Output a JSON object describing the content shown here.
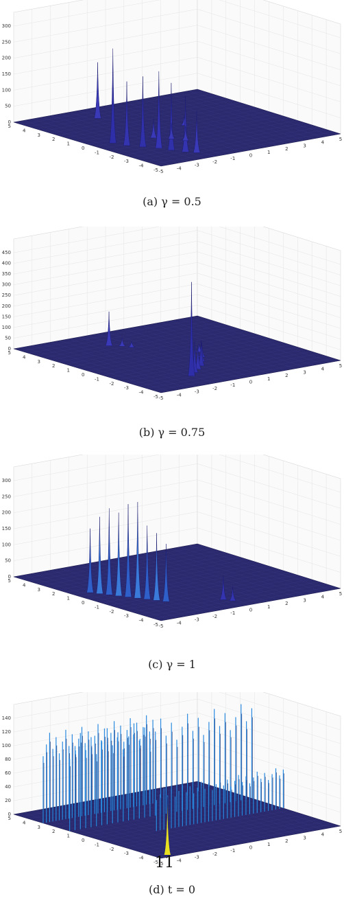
{
  "page_number": "11",
  "chart_data": [
    {
      "type": "surface",
      "caption": "(a) γ = 0.5",
      "zticks": [
        "0",
        "50",
        "100",
        "150",
        "200",
        "250",
        "300"
      ],
      "zmax": 300,
      "xticks": [
        "-5",
        "-4",
        "-3",
        "-2",
        "-1",
        "0",
        "1",
        "2",
        "3",
        "4",
        "5"
      ],
      "yticks": [
        "5",
        "4",
        "3",
        "2",
        "1",
        "0",
        "-1",
        "-2",
        "-3",
        "-4",
        "-5"
      ],
      "peaks": [
        {
          "u": 0.16,
          "v": 0.33,
          "z": 175,
          "c": "#3a3ab8"
        },
        {
          "u": 0.48,
          "v": 0.55,
          "z": 30,
          "c": "#3a3ab8"
        },
        {
          "u": 0.55,
          "v": 0.1,
          "z": 295,
          "c": "#2e2ea8"
        },
        {
          "u": 0.62,
          "v": 0.12,
          "z": 200,
          "c": "#3434b0"
        },
        {
          "u": 0.68,
          "v": 0.16,
          "z": 220,
          "c": "#3030aa"
        },
        {
          "u": 0.74,
          "v": 0.2,
          "z": 240,
          "c": "#3434b4"
        },
        {
          "u": 0.8,
          "v": 0.22,
          "z": 210,
          "c": "#3030aa"
        },
        {
          "u": 0.86,
          "v": 0.25,
          "z": 175,
          "c": "#3434b0"
        },
        {
          "u": 0.9,
          "v": 0.28,
          "z": 130,
          "c": "#3a3ab8"
        },
        {
          "u": 0.58,
          "v": 0.3,
          "z": 60,
          "c": "#3a3ab8"
        },
        {
          "u": 0.64,
          "v": 0.35,
          "z": 50,
          "c": "#3a3ab8"
        },
        {
          "u": 0.7,
          "v": 0.38,
          "z": 45,
          "c": "#3a3ab8"
        }
      ]
    },
    {
      "type": "surface",
      "caption": "(b) γ = 0.75",
      "zticks": [
        "0",
        "50",
        "100",
        "150",
        "200",
        "250",
        "300",
        "350",
        "400",
        "450"
      ],
      "zmax": 450,
      "xticks": [
        "-5",
        "-4",
        "-3",
        "-2",
        "-1",
        "0",
        "1",
        "2",
        "3",
        "4",
        "5"
      ],
      "yticks": [
        "5",
        "4",
        "3",
        "2",
        "1",
        "0",
        "-1",
        "-2",
        "-3",
        "-4",
        "-5"
      ],
      "peaks": [
        {
          "u": 0.2,
          "v": 0.36,
          "z": 160,
          "c": "#3a3ab8"
        },
        {
          "u": 0.24,
          "v": 0.4,
          "z": 40,
          "c": "#3a3ab8"
        },
        {
          "u": 0.28,
          "v": 0.42,
          "z": 30,
          "c": "#3a3ab8"
        },
        {
          "u": 0.52,
          "v": 0.6,
          "z": 40,
          "c": "#3a3ab8"
        },
        {
          "u": 0.6,
          "v": 0.55,
          "z": 70,
          "c": "#3434b0"
        },
        {
          "u": 0.66,
          "v": 0.5,
          "z": 90,
          "c": "#3434b0"
        },
        {
          "u": 0.72,
          "v": 0.45,
          "z": 120,
          "c": "#3030aa"
        },
        {
          "u": 0.76,
          "v": 0.4,
          "z": 110,
          "c": "#3434b0"
        },
        {
          "u": 0.8,
          "v": 0.35,
          "z": 150,
          "c": "#3030aa"
        },
        {
          "u": 0.84,
          "v": 0.3,
          "z": 440,
          "c": "#2e2ea8"
        }
      ]
    },
    {
      "type": "surface",
      "caption": "(c) γ = 1",
      "zticks": [
        "0",
        "50",
        "100",
        "150",
        "200",
        "250",
        "300"
      ],
      "zmax": 300,
      "xticks": [
        "-5",
        "-4",
        "-3",
        "-2",
        "-1",
        "0",
        "1",
        "2",
        "3",
        "4",
        "5"
      ],
      "yticks": [
        "5",
        "4",
        "3",
        "2",
        "1",
        "0",
        "-1",
        "-2",
        "-3",
        "-4",
        "-5"
      ],
      "peaks": [
        {
          "u": 0.42,
          "v": 0.08,
          "z": 200,
          "c": "#2f5fc8"
        },
        {
          "u": 0.46,
          "v": 0.1,
          "z": 240,
          "c": "#3a7ad8"
        },
        {
          "u": 0.5,
          "v": 0.12,
          "z": 270,
          "c": "#2f5fc8"
        },
        {
          "u": 0.54,
          "v": 0.14,
          "z": 260,
          "c": "#3a7ad8"
        },
        {
          "u": 0.58,
          "v": 0.16,
          "z": 290,
          "c": "#2f5fc8"
        },
        {
          "u": 0.62,
          "v": 0.18,
          "z": 300,
          "c": "#3a7ad8"
        },
        {
          "u": 0.66,
          "v": 0.2,
          "z": 230,
          "c": "#2f5fc8"
        },
        {
          "u": 0.7,
          "v": 0.22,
          "z": 210,
          "c": "#3a7ad8"
        },
        {
          "u": 0.74,
          "v": 0.24,
          "z": 180,
          "c": "#2f5fc8"
        },
        {
          "u": 0.86,
          "v": 0.46,
          "z": 75,
          "c": "#3434b0"
        },
        {
          "u": 0.9,
          "v": 0.48,
          "z": 45,
          "c": "#3434b0"
        }
      ]
    },
    {
      "type": "surface",
      "caption": "(d) t = 0",
      "zticks": [
        "0",
        "20",
        "40",
        "60",
        "80",
        "100",
        "120",
        "140"
      ],
      "zmax": 140,
      "xticks": [
        "-5",
        "-4",
        "-3",
        "-2",
        "-1",
        "0",
        "1",
        "2",
        "3",
        "4",
        "5"
      ],
      "yticks": [
        "5",
        "4",
        "3",
        "2",
        "1",
        "0",
        "-1",
        "-2",
        "-3",
        "-4",
        "-5"
      ],
      "ridges": [
        {
          "u0": 0.2,
          "v0": 0.0,
          "u1": 0.2,
          "v1": 0.6,
          "z": 130,
          "c": "#2a8ae0"
        },
        {
          "u0": 0.38,
          "v0": 0.0,
          "u1": 0.38,
          "v1": 1.0,
          "z": 140,
          "c": "#2a8ae0"
        },
        {
          "u0": 0.6,
          "v0": 0.3,
          "u1": 0.6,
          "v1": 1.0,
          "z": 60,
          "c": "#2a8ae0"
        }
      ],
      "peaks": [
        {
          "u": 0.97,
          "v": 0.06,
          "z": 85,
          "c": "#e8e020"
        }
      ]
    }
  ]
}
